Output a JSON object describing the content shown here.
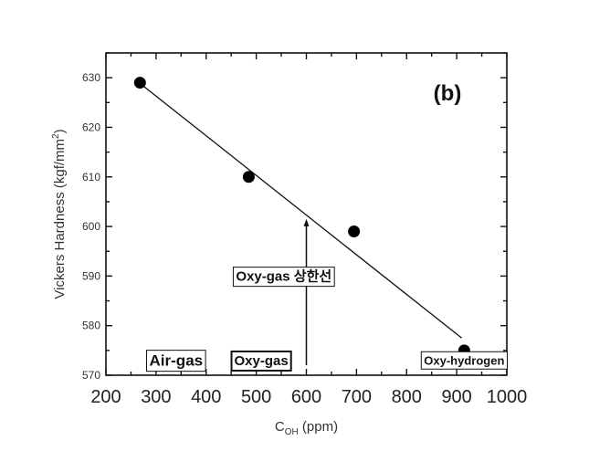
{
  "chart_data": {
    "type": "scatter",
    "panel_label": "(b)",
    "xlabel_main": "C",
    "xlabel_sub": "OH",
    "xlabel_unit": " (ppm)",
    "ylabel": "Vickers Hardness (kgf/mm",
    "ylabel_sup": "2",
    "ylabel_end": ")",
    "xlim": [
      200,
      1000
    ],
    "ylim": [
      570,
      635
    ],
    "xticks": [
      200,
      300,
      400,
      500,
      600,
      700,
      800,
      900,
      1000
    ],
    "yticks": [
      570,
      580,
      590,
      600,
      610,
      620,
      630
    ],
    "points": [
      {
        "x": 268,
        "y": 629
      },
      {
        "x": 485,
        "y": 610
      },
      {
        "x": 695,
        "y": 599
      },
      {
        "x": 915,
        "y": 575
      }
    ],
    "fit_line": [
      {
        "x": 275,
        "y": 628.3
      },
      {
        "x": 910,
        "y": 577.5
      }
    ],
    "arrow": {
      "x": 600,
      "y_from": 572,
      "y_to": 601.5
    },
    "annotations": [
      {
        "text": "Air-gas",
        "x": 340,
        "y": 573,
        "size": 17
      },
      {
        "text": "Oxy-gas",
        "x": 510,
        "y": 573,
        "size": 15
      },
      {
        "text": "Oxy-gas 상한선",
        "x": 555,
        "y": 590,
        "size": 15
      },
      {
        "text": "Oxy-hydrogen",
        "x": 915,
        "y": 573,
        "size": 13
      }
    ]
  }
}
